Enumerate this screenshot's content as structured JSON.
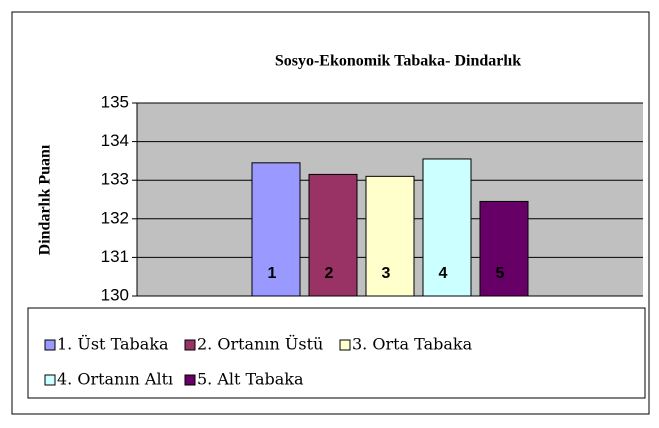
{
  "chart_data": {
    "type": "bar",
    "title": "Sosyo-Ekonomik Tabaka- Dindarlık",
    "ylabel": "Dindarlık Puanı",
    "series": [
      {
        "name": "1. Üst Tabaka",
        "color": "#9999FF",
        "values": [
          133.45
        ]
      },
      {
        "name": "2. Ortanın Üstü",
        "color": "#993366",
        "values": [
          133.15
        ]
      },
      {
        "name": "3. Orta Tabaka",
        "color": "#FFFFCC",
        "values": [
          133.1
        ]
      },
      {
        "name": "4. Ortanın Altı",
        "color": "#CCFFFF",
        "values": [
          133.55
        ]
      },
      {
        "name": "5. Alt Tabaka",
        "color": "#660066",
        "values": [
          132.45
        ]
      }
    ],
    "bar_labels": [
      "1",
      "2",
      "3",
      "4",
      "5"
    ],
    "ylim": [
      130,
      135
    ],
    "yticks": [
      130,
      131,
      132,
      133,
      134,
      135
    ],
    "grid": true
  }
}
